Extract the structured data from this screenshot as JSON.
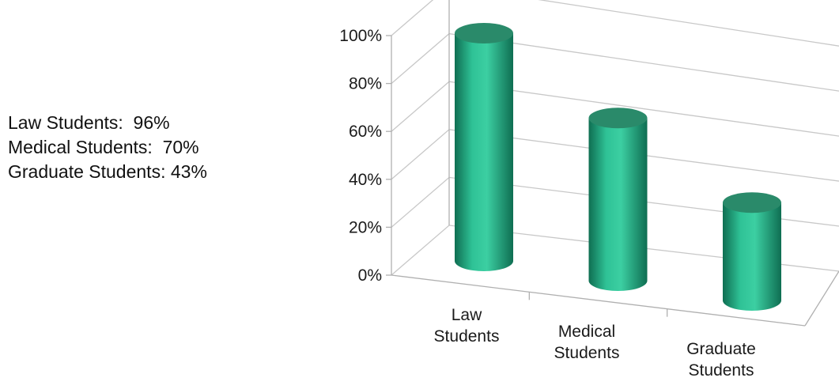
{
  "summary": {
    "lines": [
      "Law Students:  96%",
      "Medical Students:  70%",
      "Graduate Students: 43%"
    ]
  },
  "chart_data": {
    "type": "bar",
    "style": "3d-cylinder",
    "categories": [
      [
        "Law",
        "Students"
      ],
      [
        "Medical",
        "Students"
      ],
      [
        "Graduate",
        "Students"
      ]
    ],
    "values": [
      96,
      70,
      43
    ],
    "y_ticks": [
      "0%",
      "20%",
      "40%",
      "60%",
      "80%",
      "100%"
    ],
    "ylim": [
      0,
      100
    ],
    "grid": true,
    "legend": "none",
    "colors": {
      "bar_light": "#2fc296",
      "bar_mid": "#1fa37c",
      "bar_dark": "#0f6e52",
      "bar_top": "#2a8a6a",
      "grid": "#c8c8c8",
      "axis": "#b0b0b0"
    }
  }
}
